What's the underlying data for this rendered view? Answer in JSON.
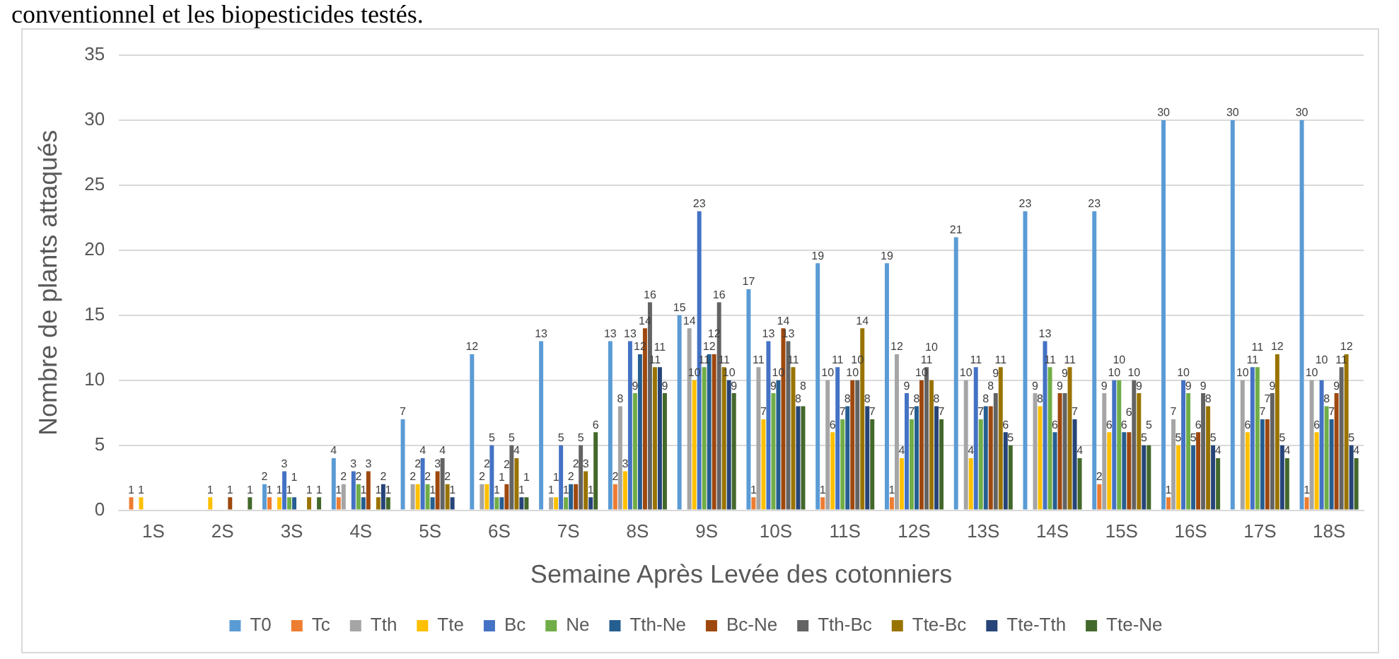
{
  "chart_data": {
    "type": "bar",
    "xlabel": "Semaine Après Levée des cotonniers",
    "ylabel": "Nombre de plants attaqués",
    "annotations": [
      "conventionnel et les biopesticides testés."
    ],
    "categories": [
      "1S",
      "2S",
      "3S",
      "4S",
      "5S",
      "6S",
      "7S",
      "8S",
      "9S",
      "10S",
      "11S",
      "12S",
      "13S",
      "14S",
      "15S",
      "16S",
      "17S",
      "18S"
    ],
    "ylim": [
      0,
      35
    ],
    "yticks": [
      0,
      5,
      10,
      15,
      20,
      25,
      30,
      35
    ],
    "grid": "y",
    "legend": "bottom",
    "data_labels": true,
    "series": [
      {
        "name": "T0",
        "color": "#5b9bd5",
        "values": [
          null,
          null,
          2,
          4,
          7,
          12,
          13,
          13,
          15,
          17,
          19,
          19,
          21,
          23,
          23,
          30,
          30,
          30
        ]
      },
      {
        "name": "Tc",
        "color": "#ed7d31",
        "values": [
          1,
          null,
          1,
          1,
          null,
          null,
          null,
          2,
          null,
          1,
          1,
          1,
          null,
          null,
          2,
          1,
          null,
          1
        ]
      },
      {
        "name": "Tth",
        "color": "#a5a5a5",
        "values": [
          null,
          null,
          null,
          2,
          2,
          2,
          1,
          8,
          14,
          11,
          10,
          12,
          10,
          9,
          9,
          7,
          10,
          10
        ]
      },
      {
        "name": "Tte",
        "color": "#ffc000",
        "values": [
          1,
          1,
          1,
          null,
          2,
          2,
          1,
          3,
          10,
          7,
          6,
          4,
          4,
          8,
          6,
          5,
          6,
          6
        ]
      },
      {
        "name": "Bc",
        "color": "#4472c4",
        "values": [
          null,
          null,
          3,
          3,
          4,
          5,
          5,
          13,
          23,
          13,
          11,
          9,
          11,
          13,
          10,
          10,
          11,
          10
        ]
      },
      {
        "name": "Ne",
        "color": "#70ad47",
        "values": [
          null,
          null,
          1,
          2,
          2,
          1,
          1,
          9,
          11,
          9,
          7,
          7,
          7,
          11,
          10,
          9,
          11,
          8
        ]
      },
      {
        "name": "Tth-Ne",
        "color": "#255e91",
        "values": [
          null,
          null,
          1,
          1,
          1,
          1,
          2,
          12,
          12,
          10,
          8,
          8,
          8,
          6,
          6,
          5,
          7,
          7
        ]
      },
      {
        "name": "Bc-Ne",
        "color": "#9e480e",
        "values": [
          null,
          1,
          null,
          3,
          3,
          2,
          2,
          14,
          12,
          14,
          10,
          10,
          8,
          9,
          6,
          6,
          7,
          9
        ]
      },
      {
        "name": "Tth-Bc",
        "color": "#636363",
        "values": [
          null,
          null,
          null,
          null,
          4,
          5,
          5,
          16,
          16,
          13,
          10,
          11,
          9,
          9,
          10,
          9,
          9,
          11
        ]
      },
      {
        "name": "Tte-Bc",
        "color": "#997300",
        "values": [
          null,
          null,
          1,
          1,
          2,
          4,
          3,
          11,
          11,
          11,
          14,
          10,
          11,
          11,
          9,
          8,
          12,
          12
        ]
      },
      {
        "name": "Tte-Tth",
        "color": "#264478",
        "values": [
          null,
          null,
          null,
          2,
          1,
          1,
          1,
          11,
          10,
          8,
          8,
          8,
          6,
          7,
          5,
          5,
          5,
          5
        ]
      },
      {
        "name": "Tte-Ne",
        "color": "#43682b",
        "values": [
          null,
          1,
          1,
          1,
          null,
          1,
          6,
          9,
          9,
          8,
          7,
          7,
          5,
          4,
          5,
          4,
          4,
          4
        ]
      }
    ]
  }
}
